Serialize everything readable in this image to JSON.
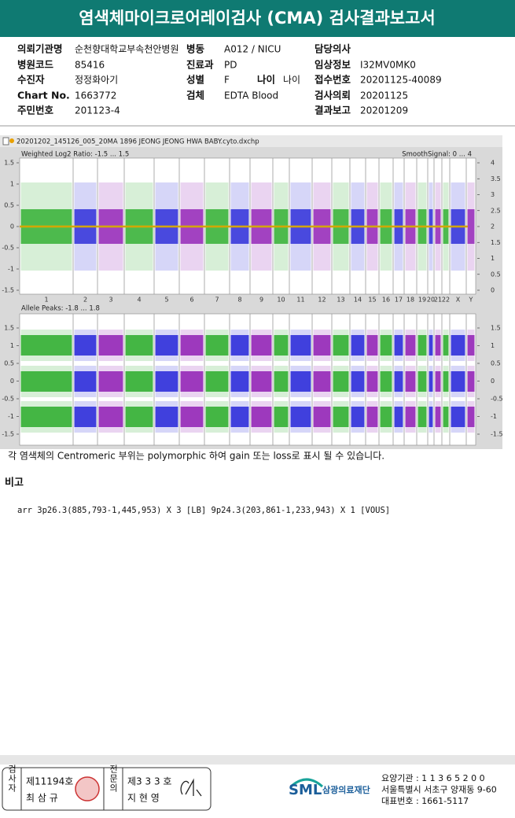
{
  "header": {
    "title": "염색체마이크로어레이검사 (CMA) 검사결과보고서"
  },
  "info": [
    {
      "left": {
        "label": "의뢰기관명",
        "value": "순천향대학교부속천안병원"
      },
      "middle": {
        "label": "병동",
        "value": "A012 / NICU"
      },
      "right": {
        "label": "담당의사"
      }
    },
    {
      "left": {
        "label": "병원코드",
        "value": "85416"
      },
      "middle": {
        "label": "진료과",
        "value": "PD"
      },
      "right": {
        "label": "임상정보",
        "value": "I32MV0MK0"
      }
    },
    {
      "left": {
        "label": "수진자",
        "value": "정정화아기"
      },
      "middle": {
        "label": "성별",
        "value": "F"
      },
      "middle2": {
        "label": "나이",
        "value": "나이"
      },
      "right": {
        "label": "접수번호",
        "value": "20201125-40089"
      }
    },
    {
      "left": {
        "label": "Chart No.",
        "value": "1663772"
      },
      "middle": {
        "label": "검체",
        "value": "EDTA Blood"
      },
      "right": {
        "label": "검사의뢰",
        "value": "20201125"
      }
    },
    {
      "left": {
        "label": "주민번호",
        "value": "201123-4"
      },
      "right": {
        "label": "결과보고",
        "value": "20201209"
      }
    }
  ],
  "plot": {
    "file": "20201202_145126_005_20MA 1896 JEONG JEONG HWA BABY.cyto.dxchp",
    "upper": {
      "title": "Weighted Log2 Ratio: -1.5 ... 1.5",
      "right_title": "SmoothSignal: 0 ... 4",
      "left_ticks": [
        "1.5",
        "1",
        "0.5",
        "0",
        "-0.5",
        "-1",
        "-1.5"
      ],
      "right_ticks": [
        "4",
        "3.5",
        "3",
        "2.5",
        "2",
        "1.5",
        "1",
        "0.5",
        "0"
      ]
    },
    "chromosomes": [
      "1",
      "2",
      "3",
      "4",
      "5",
      "6",
      "7",
      "8",
      "9",
      "10",
      "11",
      "12",
      "13",
      "14",
      "15",
      "16",
      "17",
      "18",
      "19",
      "20",
      "21",
      "22",
      "X",
      "Y"
    ],
    "lower": {
      "title": "Allele Peaks: -1.8 ... 1.8",
      "left_ticks": [
        "1.5",
        "1",
        "0.5",
        "0",
        "-0.5",
        "-1",
        "-1.5"
      ],
      "right_ticks": [
        "1.5",
        "1",
        "0.5",
        "0",
        "-0.5",
        "-1",
        "-1.5"
      ]
    }
  },
  "note": "각 염색체의 Centromeric 부위는 polymorphic 하여 gain 또는 loss로 표시 될 수 있습니다.",
  "remarks": {
    "title": "비고",
    "text": "arr 3p26.3(885,793-1,445,953) X 3 [LB] 9p24.3(203,861-1,233,943) X 1 [VOUS]"
  },
  "footer": {
    "examiner": {
      "role": "검사자",
      "number": "제11194호",
      "name": "최 삼 규"
    },
    "specialist": {
      "role": "전문의",
      "number": "제3 3 3 호",
      "name": "지 현 영"
    },
    "logo": {
      "mark": "SML",
      "name": "삼광의료재단"
    },
    "address": [
      "요양기관 : 1 1 3 6 5 2 0 0",
      "서울특별시 서초구 양재동 9-60",
      "대표번호 : 1661-5117"
    ]
  }
}
